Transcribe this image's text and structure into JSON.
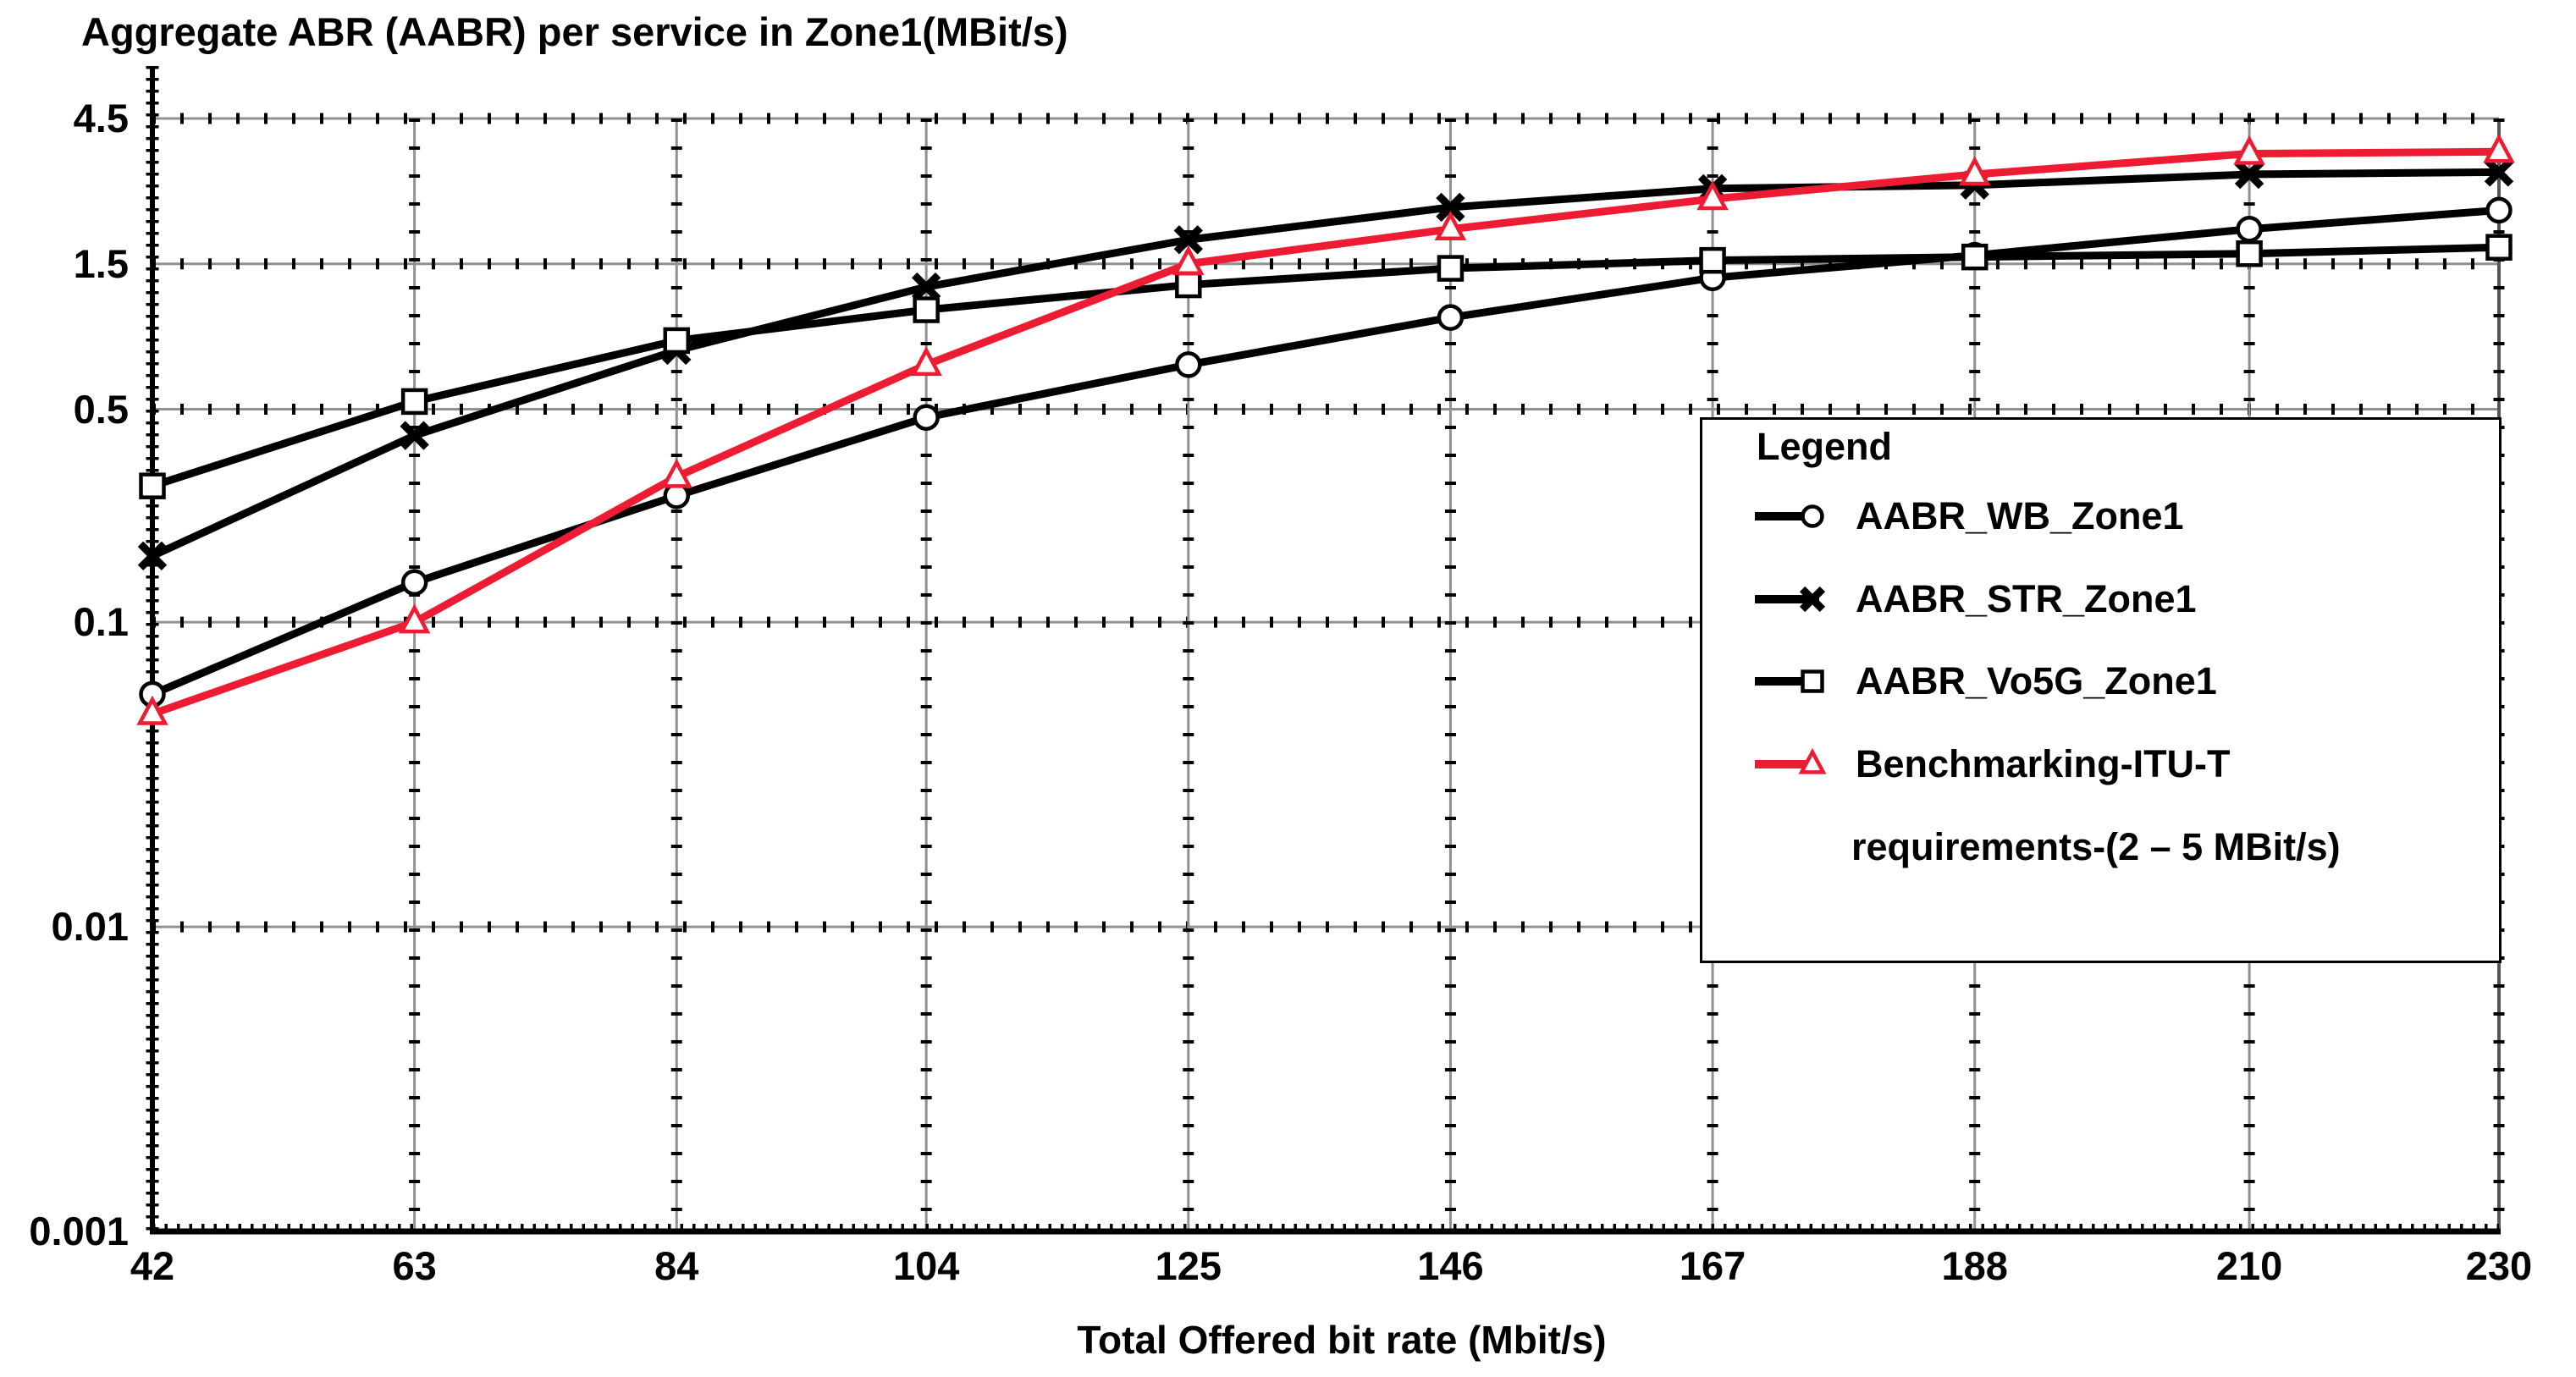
{
  "title": "Aggregate ABR (AABR) per service in Zone1(MBit/s)",
  "x_axis": {
    "label": "Total Offered bit rate (Mbit/s)",
    "tick_labels": [
      "42",
      "63",
      "84",
      "104",
      "125",
      "146",
      "167",
      "188",
      "210",
      "230"
    ]
  },
  "y_axis": {
    "tick_labels": [
      "4.5",
      "1.5",
      "0.5",
      "0.1",
      "0.01",
      "0.001"
    ],
    "tick_values": [
      4.5,
      1.5,
      0.5,
      0.1,
      0.01,
      0.001
    ]
  },
  "legend": {
    "title": "Legend",
    "entries": [
      {
        "label_lines": [
          "AABR_WB_Zone1"
        ],
        "marker": "circle",
        "color": "#000000"
      },
      {
        "label_lines": [
          "AABR_STR_Zone1"
        ],
        "marker": "xstar",
        "color": "#000000"
      },
      {
        "label_lines": [
          "AABR_Vo5G_Zone1"
        ],
        "marker": "square",
        "color": "#000000"
      },
      {
        "label_lines": [
          "Benchmarking-ITU-T",
          "requirements-(2 – 5 MBit/s)"
        ],
        "marker": "triangle",
        "color": "#ee1c33"
      }
    ]
  },
  "colors": {
    "ink": "#000000",
    "benchmark_red": "#ee1c33",
    "grid_gray": "#909090"
  },
  "chart_data": {
    "type": "line",
    "title": "Aggregate ABR (AABR) per service in Zone1(MBit/s)",
    "xlabel": "Total Offered bit rate (Mbit/s)",
    "ylabel": "",
    "yscale": "log",
    "xlim": [
      42,
      230
    ],
    "ylim": [
      0.001,
      4.5
    ],
    "grid": true,
    "legend_position": "inside right",
    "x": [
      42,
      63,
      84,
      104,
      125,
      146,
      167,
      188,
      210,
      230
    ],
    "ytick_values": [
      4.5,
      1.5,
      0.5,
      0.1,
      0.01,
      0.001
    ],
    "series": [
      {
        "name": "AABR_WB_Zone1",
        "marker": "circle",
        "color": "#000000",
        "values": [
          0.058,
          0.135,
          0.26,
          0.47,
          0.7,
          1.0,
          1.35,
          1.6,
          1.95,
          2.25
        ]
      },
      {
        "name": "AABR_STR_Zone1",
        "marker": "xstar",
        "color": "#000000",
        "values": [
          0.165,
          0.41,
          0.78,
          1.26,
          1.8,
          2.3,
          2.65,
          2.72,
          2.95,
          3.0
        ]
      },
      {
        "name": "AABR_Vo5G_Zone1",
        "marker": "square",
        "color": "#000000",
        "values": [
          0.28,
          0.53,
          0.84,
          1.06,
          1.28,
          1.45,
          1.54,
          1.58,
          1.62,
          1.7
        ]
      },
      {
        "name": "Benchmarking-ITU-T requirements-(2 – 5 MBit/s)",
        "marker": "triangle",
        "color": "#ee1c33",
        "values": [
          0.05,
          0.1,
          0.3,
          0.7,
          1.5,
          1.95,
          2.45,
          2.95,
          3.45,
          3.5
        ]
      }
    ]
  }
}
